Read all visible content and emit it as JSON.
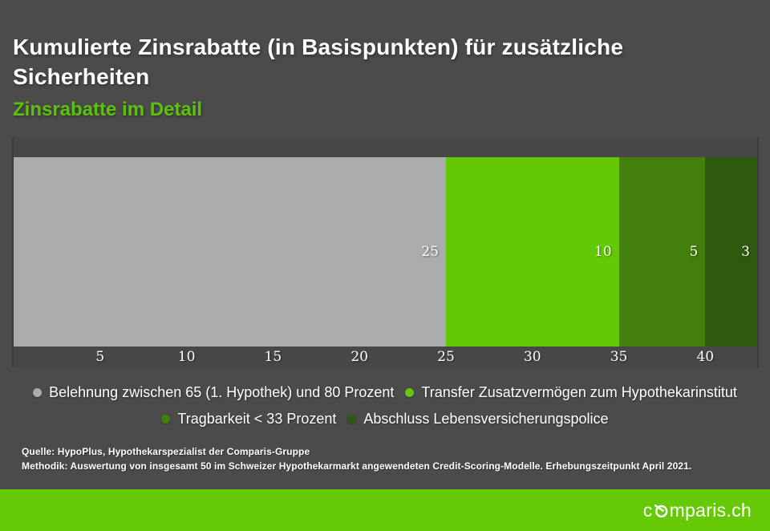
{
  "title": "Kumulierte Zinsrabatte (in Basispunkten) für zusätzliche Sicherheiten",
  "subtitle": "Zinsrabatte im Detail",
  "colors": {
    "page_background": "#4b4b4b",
    "plot_background": "#474747",
    "axis_line": "#3a3a3a",
    "accent_green": "#5cc10a",
    "footer_green": "#65c905",
    "text": "#ffffff"
  },
  "chart_data": {
    "type": "bar",
    "orientation": "horizontal-stacked",
    "title": "Kumulierte Zinsrabatte (in Basispunkten) für zusätzliche Sicherheiten",
    "subtitle": "Zinsrabatte im Detail",
    "xlim": [
      0,
      43
    ],
    "x_ticks": [
      5,
      10,
      15,
      20,
      25,
      30,
      35,
      40
    ],
    "grid": false,
    "legend_position": "bottom-center",
    "value_labels": "inside-right, white",
    "segments": [
      {
        "label": "Belehnung zwischen 65 (1. Hypothek) und 80 Prozent",
        "value": 25,
        "color": "#acacac"
      },
      {
        "label": "Transfer Zusatzvermögen zum Hypothekarinstitut",
        "value": 10,
        "color": "#65c806"
      },
      {
        "label": "Tragbarkeit < 33 Prozent",
        "value": 5,
        "color": "#42800b"
      },
      {
        "label": "Abschluss Lebensversicherungspolice",
        "value": 3,
        "color": "#2d5a0e"
      }
    ]
  },
  "legend": {
    "items_per_row": 2
  },
  "source": {
    "line1": "Quelle: HypoPlus, Hypothekarspezialist der Comparis-Gruppe",
    "line2": "Methodik: Auswertung von insgesamt 50 im Schweizer Hypothekarmarkt angewendeten Credit-Scoring-Modelle. Erhebungszeitpunkt April 2021."
  },
  "footer": {
    "logo_prefix": "c",
    "logo_suffix": "mparis.ch"
  }
}
